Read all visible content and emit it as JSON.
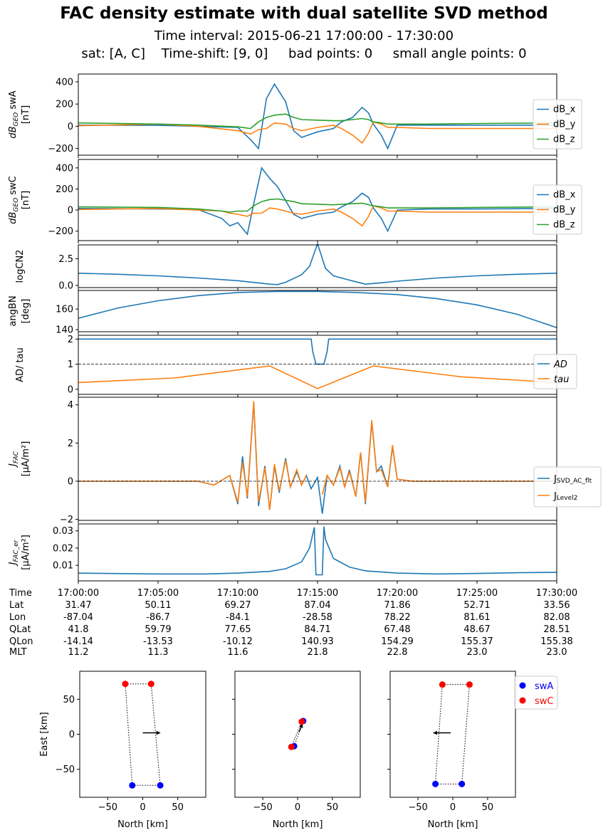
{
  "figure": {
    "title": "FAC density estimate with dual satellite SVD method",
    "subtitle_line1": "Time interval:  2015-06-21  17:00:00 - 17:30:00",
    "subtitle_line2": "sat: [A, C]    Time-shift: [9, 0]     bad points: 0     small angle points: 0"
  },
  "colors": {
    "blue": "#1f77b4",
    "orange": "#ff7f0e",
    "green": "#2ca02c",
    "swA": "#0000ff",
    "swC": "#ff0000"
  },
  "chart_data": [
    {
      "id": "dB_swA",
      "type": "line",
      "ylabel_parts": [
        "dB",
        "GEO",
        " swA"
      ],
      "ylabel_unit": "[nT]",
      "ylim": [
        -260,
        470
      ],
      "yticks": [
        -200,
        0,
        200,
        400
      ],
      "legend": [
        "dB_x",
        "dB_y",
        "dB_z"
      ],
      "x_minutes": [
        0,
        5,
        7.5,
        10,
        10.8,
        11.3,
        11.8,
        12.3,
        13.0,
        13.5,
        14,
        15,
        16,
        16.5,
        17.2,
        17.8,
        18.2,
        18.5,
        19,
        19.4,
        20,
        22,
        25,
        30
      ],
      "series": [
        {
          "name": "dB_x",
          "values": [
            10,
            8,
            0,
            -10,
            -120,
            -200,
            250,
            380,
            220,
            -40,
            -100,
            -50,
            -20,
            40,
            80,
            170,
            120,
            20,
            -80,
            -200,
            10,
            10,
            10,
            10
          ]
        },
        {
          "name": "dB_y",
          "values": [
            5,
            20,
            0,
            -40,
            -70,
            -30,
            -20,
            30,
            20,
            -20,
            -40,
            -10,
            10,
            -20,
            -80,
            -150,
            -60,
            40,
            20,
            -10,
            -10,
            -20,
            -20,
            -20
          ]
        },
        {
          "name": "dB_z",
          "values": [
            30,
            20,
            10,
            -5,
            -20,
            40,
            80,
            100,
            110,
            80,
            60,
            55,
            50,
            50,
            60,
            70,
            60,
            40,
            30,
            20,
            20,
            20,
            25,
            30
          ]
        }
      ]
    },
    {
      "id": "dB_swC",
      "type": "line",
      "ylabel_parts": [
        "dB",
        "GEO",
        " swC"
      ],
      "ylabel_unit": "[nT]",
      "ylim": [
        -290,
        480
      ],
      "yticks": [
        -200,
        0,
        200,
        400
      ],
      "legend": [
        "dB_x",
        "dB_y",
        "dB_z"
      ],
      "x_minutes": [
        0,
        5,
        7.5,
        9,
        9.5,
        10,
        10.6,
        11,
        11.5,
        12,
        12.5,
        13.5,
        14,
        15,
        16,
        16.5,
        17.2,
        17.8,
        18.2,
        18.5,
        19,
        19.4,
        20,
        22,
        25,
        30
      ],
      "series": [
        {
          "name": "dB_x",
          "values": [
            15,
            10,
            5,
            -80,
            -150,
            -120,
            -230,
            60,
            400,
            300,
            220,
            -40,
            -80,
            -40,
            -20,
            30,
            80,
            160,
            120,
            20,
            -80,
            -200,
            0,
            10,
            10,
            15
          ]
        },
        {
          "name": "dB_y",
          "values": [
            5,
            15,
            0,
            -10,
            -30,
            -40,
            -60,
            -30,
            -30,
            20,
            10,
            -30,
            -40,
            -10,
            10,
            -20,
            -80,
            -150,
            -60,
            40,
            20,
            -10,
            -10,
            -20,
            -20,
            -20
          ]
        },
        {
          "name": "dB_z",
          "values": [
            30,
            25,
            10,
            -10,
            -20,
            -10,
            -10,
            40,
            80,
            100,
            105,
            80,
            60,
            55,
            50,
            55,
            60,
            65,
            50,
            40,
            30,
            20,
            20,
            20,
            25,
            30
          ]
        }
      ]
    },
    {
      "id": "logCN2",
      "type": "line",
      "ylabel": "logCN2",
      "ylim": [
        -0.2,
        3.8
      ],
      "yticks": [
        0.0,
        2.5
      ],
      "ytick_labels": [
        "0.0",
        "2.5"
      ],
      "x_minutes": [
        0,
        2.5,
        5,
        7.5,
        10,
        12,
        12.5,
        13,
        14,
        14.5,
        15,
        15.5,
        16,
        17,
        18,
        19,
        20,
        22.5,
        25,
        27.5,
        30
      ],
      "series": [
        {
          "name": "logCN2",
          "values": [
            1.15,
            1.05,
            0.9,
            0.7,
            0.45,
            0.12,
            0.08,
            0.3,
            1.0,
            1.8,
            3.9,
            1.6,
            0.9,
            0.5,
            0.12,
            0.25,
            0.4,
            0.7,
            0.9,
            1.05,
            1.15
          ]
        }
      ]
    },
    {
      "id": "angBN",
      "type": "line",
      "ylabel": "angBN",
      "ylabel_unit": "[deg]",
      "ylim": [
        138,
        178
      ],
      "yticks": [
        140,
        160
      ],
      "ytick_labels": [
        "140",
        "160"
      ],
      "x_minutes": [
        0,
        2.5,
        5,
        7.5,
        10,
        12.5,
        15,
        17.5,
        20,
        22.5,
        25,
        27.5,
        30
      ],
      "series": [
        {
          "name": "angBN",
          "values": [
            151,
            161,
            168,
            173,
            176,
            177,
            177,
            176,
            174,
            170,
            164,
            155,
            142
          ]
        }
      ]
    },
    {
      "id": "AD_tau",
      "type": "line",
      "ylabel": "AD/ tau",
      "ylim": [
        -0.2,
        2.15
      ],
      "yticks": [
        0,
        1,
        2
      ],
      "ytick_labels": [
        "0",
        "1",
        "2"
      ],
      "hline": 1,
      "legend": [
        "AD",
        "tau"
      ],
      "x_minutes": [
        0,
        14.6,
        14.7,
        14.9,
        15.4,
        15.6,
        15.7,
        30
      ],
      "series": [
        {
          "name": "AD",
          "values": [
            2,
            2,
            1.5,
            1,
            1,
            1.5,
            2,
            2
          ]
        },
        {
          "name": "tau",
          "x_minutes": [
            0,
            6,
            12,
            15,
            18.5,
            24,
            30
          ],
          "values": [
            0.27,
            0.45,
            0.93,
            0.03,
            0.93,
            0.5,
            0.27
          ]
        }
      ]
    },
    {
      "id": "J_FAC",
      "type": "line",
      "ylabel_parts": [
        "J",
        "FAC"
      ],
      "ylabel_unit": "[μA/m²]",
      "ylim": [
        -2.05,
        4.4
      ],
      "yticks": [
        -2,
        0,
        2,
        4
      ],
      "ytick_labels": [
        "−2",
        "0",
        "2",
        "4"
      ],
      "hline": 0,
      "legend": [
        "J_SVD_AC_flt",
        "J_Level2"
      ],
      "x_minutes": [
        0,
        7.5,
        8.5,
        9.5,
        10,
        10.3,
        10.6,
        11,
        11.3,
        11.7,
        12,
        12.3,
        12.6,
        13,
        13.3,
        13.7,
        14,
        14.3,
        14.6,
        15,
        15.3,
        15.6,
        16,
        16.4,
        16.7,
        17,
        17.4,
        17.7,
        18,
        18.4,
        18.7,
        19,
        19.4,
        19.7,
        20,
        21,
        30
      ],
      "series": [
        {
          "name": "J_SVD_AC_flt",
          "values": [
            0,
            0,
            -0.2,
            0.3,
            -1.2,
            1.3,
            -0.9,
            4.1,
            -1.3,
            0.8,
            -1.5,
            0.8,
            -0.6,
            1.2,
            -0.3,
            0.5,
            -0.2,
            0.3,
            -0.4,
            0.2,
            -1.7,
            0.3,
            -0.2,
            0.8,
            -0.3,
            0.6,
            -0.8,
            1.5,
            -1.2,
            3.1,
            0.5,
            0.8,
            -0.3,
            1.8,
            0.1,
            0,
            0
          ]
        },
        {
          "name": "J_Level2",
          "values": [
            0,
            0,
            -0.2,
            0.3,
            -1.1,
            1.0,
            -0.8,
            4.2,
            -1.1,
            0.7,
            -1.5,
            0.9,
            -0.5,
            1.1,
            -0.3,
            0.6,
            -0.2,
            0.3,
            null,
            null,
            -0.7,
            0.3,
            -0.2,
            0.7,
            -0.3,
            0.5,
            -0.8,
            1.5,
            -1.1,
            3.2,
            0.5,
            0.6,
            -0.3,
            1.9,
            0.1,
            0,
            0
          ]
        }
      ]
    },
    {
      "id": "J_FAC_er",
      "type": "line",
      "ylabel_parts": [
        "J",
        "FAC_er"
      ],
      "ylabel_unit": "[μA/m²]",
      "ylim": [
        0.001,
        0.034
      ],
      "yticks": [
        0.01,
        0.02,
        0.03
      ],
      "ytick_labels": [
        "0.01",
        "0.02",
        "0.03"
      ],
      "x_minutes": [
        0,
        5,
        8,
        10,
        12,
        13,
        14,
        14.5,
        14.8,
        14.9,
        15.3,
        15.4,
        15.5,
        16,
        17,
        18,
        20,
        22.5,
        25,
        27.5,
        30
      ],
      "series": [
        {
          "name": "J_FAC_er",
          "values": [
            0.0055,
            0.005,
            0.005,
            0.0055,
            0.0065,
            0.008,
            0.012,
            0.02,
            0.032,
            0.0045,
            0.0045,
            0.0325,
            0.025,
            0.014,
            0.009,
            0.0068,
            0.0055,
            0.005,
            0.0053,
            0.0057,
            0.006
          ]
        }
      ]
    },
    {
      "id": "constellation_1",
      "type": "scatter",
      "xlabel": "North [km]",
      "ylabel": "East [km]",
      "xlim": [
        -90,
        90
      ],
      "ylim": [
        -90,
        90
      ],
      "xticks": [
        -50,
        0,
        50
      ],
      "yticks": [
        -50,
        0,
        50
      ],
      "swA": [
        [
          -15,
          -73
        ],
        [
          25,
          -73
        ]
      ],
      "swC": [
        [
          -25,
          72
        ],
        [
          12,
          72
        ]
      ],
      "arrow": [
        [
          0,
          2
        ],
        [
          25,
          2
        ]
      ]
    },
    {
      "id": "constellation_2",
      "type": "scatter",
      "xlabel": "North [km]",
      "xlim": [
        -90,
        90
      ],
      "ylim": [
        -90,
        90
      ],
      "xticks": [
        -50,
        0,
        50
      ],
      "yticks": [
        -50,
        0,
        50
      ],
      "swA": [
        [
          -5,
          -17
        ],
        [
          8,
          19
        ]
      ],
      "swC": [
        [
          -9,
          -18
        ],
        [
          6,
          18
        ]
      ],
      "arrow": [
        [
          2,
          3
        ],
        [
          7,
          15
        ]
      ]
    },
    {
      "id": "constellation_3",
      "type": "scatter",
      "xlabel": "North [km]",
      "xlim": [
        -90,
        90
      ],
      "ylim": [
        -90,
        90
      ],
      "xticks": [
        -50,
        0,
        50
      ],
      "yticks": [
        -50,
        0,
        50
      ],
      "swA": [
        [
          -25,
          -71
        ],
        [
          13,
          -71
        ]
      ],
      "swC": [
        [
          -15,
          71
        ],
        [
          24,
          71
        ]
      ],
      "arrow": [
        [
          -3,
          2
        ],
        [
          -28,
          2
        ]
      ],
      "legend": [
        "swA",
        "swC"
      ]
    }
  ],
  "time_table": {
    "row_labels": [
      "Time",
      "Lat",
      "Lon",
      "QLat",
      "QLon",
      "MLT"
    ],
    "columns": [
      [
        "17:00:00",
        "31.47",
        "-87.04",
        "41.8",
        "-14.14",
        "11.2"
      ],
      [
        "17:05:00",
        "50.11",
        "-86.7",
        "59.79",
        "-13.53",
        "11.3"
      ],
      [
        "17:10:00",
        "69.27",
        "-84.1",
        "77.65",
        "-10.12",
        "11.6"
      ],
      [
        "17:15:00",
        "87.04",
        "-28.58",
        "84.71",
        "140.93",
        "21.8"
      ],
      [
        "17:20:00",
        "71.86",
        "78.22",
        "67.48",
        "154.29",
        "22.8"
      ],
      [
        "17:25:00",
        "52.71",
        "81.61",
        "48.67",
        "155.37",
        "23.0"
      ],
      [
        "17:30:00",
        "33.56",
        "82.08",
        "28.51",
        "155.38",
        "23.0"
      ]
    ]
  }
}
